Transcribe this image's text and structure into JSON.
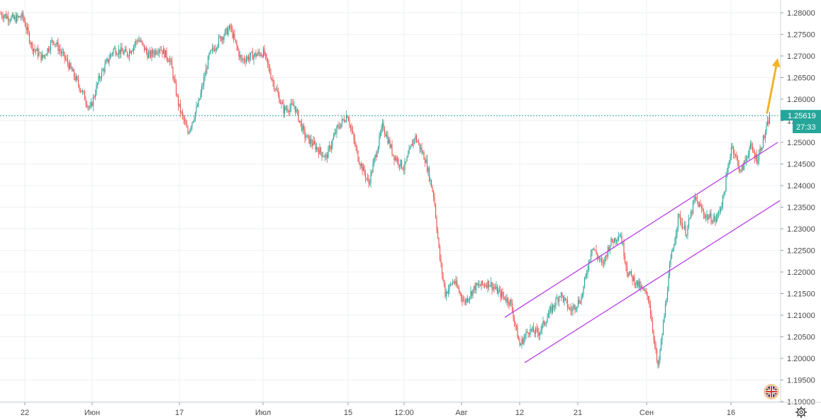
{
  "chart_data": {
    "type": "candlestick",
    "y_ticks": [
      "1.28000",
      "1.27500",
      "1.27000",
      "1.26500",
      "1.26000",
      "1.25500",
      "1.25000",
      "1.24500",
      "1.24000",
      "1.23500",
      "1.23000",
      "1.22500",
      "1.22000",
      "1.21500",
      "1.21000",
      "1.20500",
      "1.20000",
      "1.19500",
      "1.19000"
    ],
    "x_ticks": [
      "22",
      "Июн",
      "17",
      "Июл",
      "15",
      "12:00",
      "Авг",
      "12",
      "21",
      "Сен",
      "16"
    ],
    "ylim": [
      1.1885,
      1.2815
    ],
    "current_price": "1.25619",
    "countdown": "27:33",
    "grid": true,
    "colors": {
      "up": "#26a69a",
      "down": "#ef5350",
      "channel": "#b83ce6",
      "arrow": "#f0b429",
      "price_line": "#26a69a"
    },
    "series_path": [
      [
        0,
        1.2798
      ],
      [
        20,
        1.2785
      ],
      [
        32,
        1.2792
      ],
      [
        45,
        1.2722
      ],
      [
        60,
        1.2695
      ],
      [
        75,
        1.2738
      ],
      [
        95,
        1.2685
      ],
      [
        115,
        1.262
      ],
      [
        127,
        1.2575
      ],
      [
        140,
        1.265
      ],
      [
        160,
        1.2715
      ],
      [
        180,
        1.2705
      ],
      [
        195,
        1.274
      ],
      [
        210,
        1.27
      ],
      [
        225,
        1.272
      ],
      [
        240,
        1.269
      ],
      [
        252,
        1.2585
      ],
      [
        265,
        1.2522
      ],
      [
        280,
        1.259
      ],
      [
        295,
        1.27
      ],
      [
        310,
        1.274
      ],
      [
        325,
        1.2765
      ],
      [
        340,
        1.269
      ],
      [
        355,
        1.27
      ],
      [
        372,
        1.2708
      ],
      [
        385,
        1.264
      ],
      [
        400,
        1.2575
      ],
      [
        415,
        1.2585
      ],
      [
        430,
        1.2515
      ],
      [
        445,
        1.249
      ],
      [
        460,
        1.2465
      ],
      [
        475,
        1.253
      ],
      [
        490,
        1.2565
      ],
      [
        505,
        1.2465
      ],
      [
        520,
        1.2405
      ],
      [
        540,
        1.254
      ],
      [
        555,
        1.247
      ],
      [
        570,
        1.244
      ],
      [
        585,
        1.2515
      ],
      [
        600,
        1.246
      ],
      [
        612,
        1.2375
      ],
      [
        620,
        1.2235
      ],
      [
        628,
        1.215
      ],
      [
        640,
        1.218
      ],
      [
        655,
        1.213
      ],
      [
        670,
        1.2165
      ],
      [
        690,
        1.2175
      ],
      [
        705,
        1.215
      ],
      [
        720,
        1.213
      ],
      [
        733,
        1.203
      ],
      [
        745,
        1.2065
      ],
      [
        760,
        1.206
      ],
      [
        775,
        1.2105
      ],
      [
        790,
        1.215
      ],
      [
        805,
        1.211
      ],
      [
        820,
        1.214
      ],
      [
        835,
        1.226
      ],
      [
        850,
        1.2215
      ],
      [
        860,
        1.2265
      ],
      [
        875,
        1.229
      ],
      [
        885,
        1.22
      ],
      [
        900,
        1.217
      ],
      [
        915,
        1.214
      ],
      [
        922,
        1.205
      ],
      [
        928,
        1.1975
      ],
      [
        935,
        1.207
      ],
      [
        945,
        1.2215
      ],
      [
        957,
        1.233
      ],
      [
        968,
        1.229
      ],
      [
        980,
        1.237
      ],
      [
        995,
        1.233
      ],
      [
        1010,
        1.232
      ],
      [
        1020,
        1.237
      ],
      [
        1032,
        1.2495
      ],
      [
        1045,
        1.243
      ],
      [
        1058,
        1.249
      ],
      [
        1068,
        1.246
      ],
      [
        1080,
        1.2525
      ],
      [
        1086,
        1.2562
      ]
    ],
    "channel_upper": [
      [
        712,
        1.2095
      ],
      [
        1097,
        1.25
      ]
    ],
    "channel_lower": [
      [
        740,
        1.199
      ],
      [
        1100,
        1.2365
      ]
    ],
    "forecast_arrow": [
      [
        1082,
        1.2568
      ],
      [
        1097,
        1.2695
      ]
    ]
  }
}
